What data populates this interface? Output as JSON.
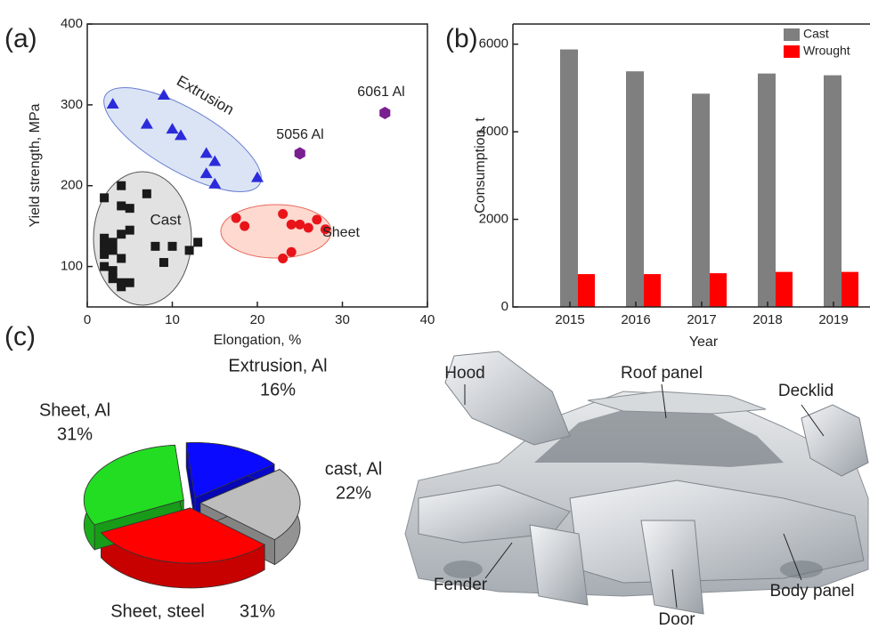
{
  "chart_data": [
    {
      "type": "scatter",
      "panel": "(a)",
      "x_label": "Elongation, %",
      "y_label": "Yield strength, MPa",
      "xlim": [
        0,
        40
      ],
      "ylim": [
        50,
        400
      ],
      "xticks": [
        0,
        10,
        20,
        30,
        40
      ],
      "yticks": [
        100,
        200,
        300,
        400
      ],
      "series": [
        {
          "name": "Extrusion",
          "color": "#2b2bdb",
          "marker": "triangle",
          "x": [
            3,
            9,
            7,
            10,
            11,
            14,
            15,
            14,
            15,
            20
          ],
          "values": [
            301,
            312,
            276,
            270,
            262,
            240,
            230,
            215,
            202,
            210
          ]
        },
        {
          "name": "Cast",
          "color": "#1a1a1a",
          "marker": "square",
          "x": [
            2,
            4,
            4,
            5,
            7,
            2,
            3,
            2,
            4,
            5,
            2,
            3,
            8,
            10,
            12,
            13,
            2,
            3,
            3,
            4,
            5,
            4,
            4,
            9
          ],
          "values": [
            185,
            200,
            175,
            172,
            190,
            135,
            130,
            125,
            140,
            145,
            115,
            120,
            125,
            125,
            120,
            130,
            100,
            95,
            85,
            80,
            80,
            75,
            110,
            105
          ]
        },
        {
          "name": "Sheet",
          "color": "#e8141a",
          "marker": "circle",
          "x": [
            17.5,
            18.5,
            23,
            24,
            25,
            26,
            27,
            28,
            23,
            24
          ],
          "values": [
            160,
            150,
            165,
            152,
            152,
            148,
            158,
            146,
            110,
            118
          ]
        },
        {
          "name": "5056 Al",
          "color": "#7a1f8f",
          "marker": "hexagon",
          "x": [
            25
          ],
          "values": [
            240
          ]
        },
        {
          "name": "6061 Al",
          "color": "#7a1f8f",
          "marker": "hexagon",
          "x": [
            35
          ],
          "values": [
            290
          ]
        }
      ]
    },
    {
      "type": "bar",
      "panel": "(b)",
      "x_label": "Year",
      "y_label": "Consumption, t",
      "categories": [
        "2015",
        "2016",
        "2017",
        "2018",
        "2019"
      ],
      "ylim": [
        0,
        6460
      ],
      "yticks": [
        0,
        2000,
        4000,
        6000
      ],
      "legend": "top-right",
      "series": [
        {
          "name": "Cast",
          "color": "#7f7f7f",
          "values": [
            5880,
            5380,
            4870,
            5330,
            5290
          ]
        },
        {
          "name": "Wrought",
          "color": "#ff0000",
          "values": [
            750,
            750,
            770,
            800,
            800
          ]
        }
      ]
    },
    {
      "type": "pie",
      "panel": "(c)",
      "three_d": true,
      "categories": [
        "Extrusion, Al",
        "cast, Al",
        "Sheet, steel",
        "Sheet, Al"
      ],
      "values": [
        16,
        22,
        31,
        31
      ],
      "value_labels": [
        "16%",
        "22%",
        "31%",
        "31%"
      ],
      "colors": [
        "#0a0aff",
        "#bdbdbd",
        "#ff0000",
        "#22dd22"
      ]
    }
  ],
  "photo": {
    "labels": [
      "Hood",
      "Roof panel",
      "Decklid",
      "Fender",
      "Body panel",
      "Door"
    ]
  }
}
